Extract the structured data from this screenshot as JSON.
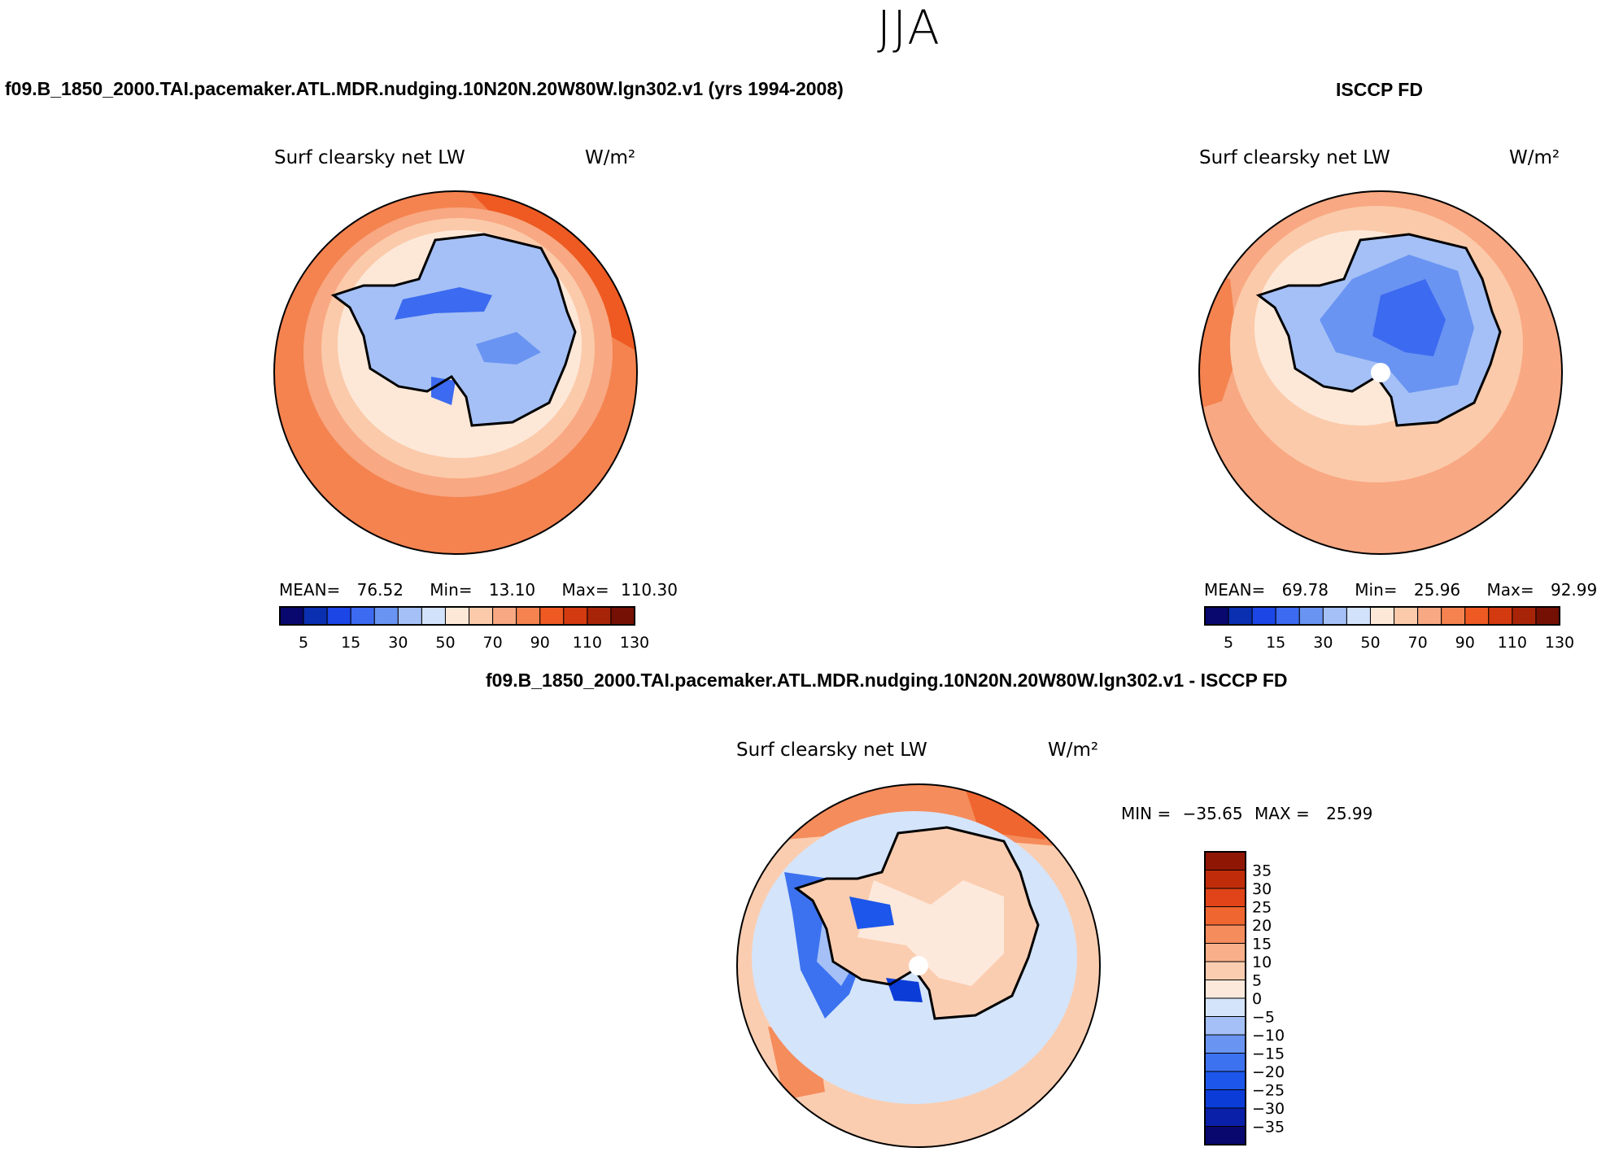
{
  "figure": {
    "season": "JJA",
    "case_title": "f09.B_1850_2000.TAI.pacemaker.ATL.MDR.nudging.10N20N.20W80W.lgn302.v1 (yrs 1994-2008)",
    "obs_title": "ISCCP FD",
    "diff_title": "f09.B_1850_2000.TAI.pacemaker.ATL.MDR.nudging.10N20N.20W80W.lgn302.v1 - ISCCP FD"
  },
  "colors": {
    "abs_scale": [
      "#08086e",
      "#0a2fb0",
      "#1c46e6",
      "#3c6af0",
      "#6a94f2",
      "#a4c0f6",
      "#d2e2fa",
      "#fde8d8",
      "#fbcaaa",
      "#f8a882",
      "#f48350",
      "#ee5a22",
      "#d43a10",
      "#a82408",
      "#741004"
    ],
    "diff_scale": [
      "#08086e",
      "#0a20a8",
      "#0c3cd8",
      "#1c56ea",
      "#3c72f0",
      "#6a94f2",
      "#a4c0f6",
      "#d4e4fa",
      "#fde9dc",
      "#fbcdb0",
      "#f9b08a",
      "#f58c5c",
      "#f06630",
      "#e04418",
      "#c02c0a",
      "#901604"
    ]
  },
  "chart_data": [
    {
      "type": "heatmap",
      "projection": "south-polar-stereographic",
      "title": "Surf clearsky net LW",
      "units": "W/m²",
      "mean_label": "MEAN=",
      "mean": "76.52",
      "min_label": "Min=",
      "min": "13.10",
      "max_label": "Max=",
      "max": "110.30",
      "colorbar_levels": [
        5,
        10,
        15,
        20,
        30,
        40,
        50,
        60,
        70,
        80,
        90,
        100,
        110,
        120,
        130
      ],
      "colorbar_tick_labels": [
        "5",
        "15",
        "30",
        "50",
        "70",
        "90",
        "110",
        "130"
      ]
    },
    {
      "type": "heatmap",
      "projection": "south-polar-stereographic",
      "title": "Surf clearsky net LW",
      "units": "W/m²",
      "mean_label": "MEAN=",
      "mean": "69.78",
      "min_label": "Min=",
      "min": "25.96",
      "max_label": "Max=",
      "max": "92.99",
      "colorbar_levels": [
        5,
        10,
        15,
        20,
        30,
        40,
        50,
        60,
        70,
        80,
        90,
        100,
        110,
        120,
        130
      ],
      "colorbar_tick_labels": [
        "5",
        "15",
        "30",
        "50",
        "70",
        "90",
        "110",
        "130"
      ]
    },
    {
      "type": "heatmap",
      "projection": "south-polar-stereographic",
      "title": "Surf clearsky net LW",
      "units": "W/m²",
      "min_label": "MIN =",
      "min": "−35.65",
      "max_label": "MAX =",
      "max": "25.99",
      "colorbar_tick_labels": [
        "35",
        "30",
        "25",
        "20",
        "15",
        "10",
        "5",
        "0",
        "−5",
        "−10",
        "−15",
        "−20",
        "−25",
        "−30",
        "−35"
      ]
    }
  ]
}
